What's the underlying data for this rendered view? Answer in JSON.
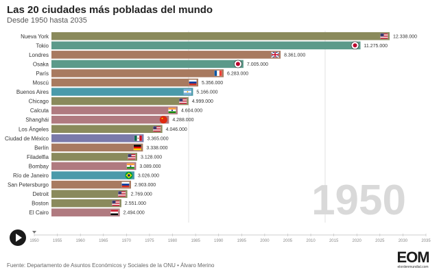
{
  "header": {
    "title": "Las 20 ciudades más pobladas del mundo",
    "subtitle": "Desde 1950 hasta 2035"
  },
  "footer": {
    "source": "Fuente: Departamento de Asuntos Económicos y Sociales de la ONU • Álvaro Merino",
    "logo_text": "EOM",
    "logo_url": "elordenmundial.com"
  },
  "controls": {
    "play_icon": "play-icon"
  },
  "chart_data": {
    "type": "bar",
    "orientation": "horizontal",
    "year": "1950",
    "grid": true,
    "x_ticks": [
      "1950",
      "1955",
      "1960",
      "1965",
      "1970",
      "1975",
      "1980",
      "1985",
      "1990",
      "1995",
      "2000",
      "2005",
      "2010",
      "2015",
      "2020",
      "2025",
      "2030",
      "2035"
    ],
    "bars": [
      {
        "city": "Nueva York",
        "value": 12338000,
        "label": "12.338.000",
        "color": "#8a8a5c",
        "flag": "us"
      },
      {
        "city": "Tokio",
        "value": 11275000,
        "label": "11.275.000",
        "color": "#5c9a8a",
        "flag": "jp"
      },
      {
        "city": "Londres",
        "value": 8361000,
        "label": "8.361.000",
        "color": "#a87a60",
        "flag": "gb"
      },
      {
        "city": "Osaka",
        "value": 7005000,
        "label": "7.005.000",
        "color": "#5c9a8a",
        "flag": "jp"
      },
      {
        "city": "París",
        "value": 6283000,
        "label": "6.283.000",
        "color": "#a87a60",
        "flag": "fr"
      },
      {
        "city": "Moscú",
        "value": 5356000,
        "label": "5.356.000",
        "color": "#a87a60",
        "flag": "ru"
      },
      {
        "city": "Buenos Aires",
        "value": 5166000,
        "label": "5.166.000",
        "color": "#4a9aaa",
        "flag": "ar"
      },
      {
        "city": "Chicago",
        "value": 4999000,
        "label": "4.999.000",
        "color": "#8a8a5c",
        "flag": "us"
      },
      {
        "city": "Calcuta",
        "value": 4604000,
        "label": "4.604.000",
        "color": "#b07a80",
        "flag": "in"
      },
      {
        "city": "Shanghái",
        "value": 4288000,
        "label": "4.288.000",
        "color": "#b07a80",
        "flag": "cn"
      },
      {
        "city": "Los Ángeles",
        "value": 4046000,
        "label": "4.046.000",
        "color": "#8a8a5c",
        "flag": "us"
      },
      {
        "city": "Ciudad de México",
        "value": 3365000,
        "label": "3.365.000",
        "color": "#7a7aaa",
        "flag": "mx"
      },
      {
        "city": "Berlín",
        "value": 3338000,
        "label": "3.338.000",
        "color": "#a87a60",
        "flag": "de"
      },
      {
        "city": "Filadelfia",
        "value": 3128000,
        "label": "3.128.000",
        "color": "#8a8a5c",
        "flag": "us"
      },
      {
        "city": "Bombay",
        "value": 3089000,
        "label": "3.089.000",
        "color": "#b07a80",
        "flag": "in"
      },
      {
        "city": "Río de Janeiro",
        "value": 3026000,
        "label": "3.026.000",
        "color": "#4a9aaa",
        "flag": "br"
      },
      {
        "city": "San Petersburgo",
        "value": 2903000,
        "label": "2.903.000",
        "color": "#a87a60",
        "flag": "ru"
      },
      {
        "city": "Detroit",
        "value": 2769000,
        "label": "2.769.000",
        "color": "#8a8a5c",
        "flag": "us"
      },
      {
        "city": "Boston",
        "value": 2551000,
        "label": "2.551.000",
        "color": "#8a8a5c",
        "flag": "us"
      },
      {
        "city": "El Cairo",
        "value": 2494000,
        "label": "2.494.000",
        "color": "#b07a80",
        "flag": "eg"
      }
    ]
  }
}
